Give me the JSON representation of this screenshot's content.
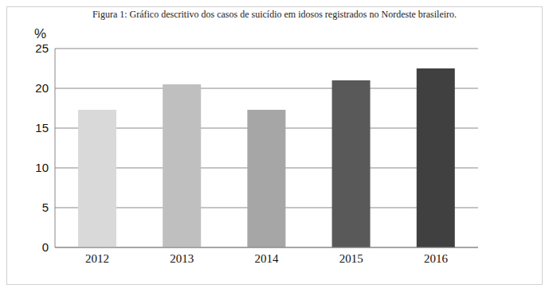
{
  "chart_data": {
    "type": "bar",
    "title": "Figura 1: Gráfico descritivo dos casos de suicídio em idosos registrados no Nordeste brasileiro.",
    "ylabel": "%",
    "categories": [
      "2012",
      "2013",
      "2014",
      "2015",
      "2016"
    ],
    "values": [
      17.3,
      20.5,
      17.3,
      21,
      22.5
    ],
    "colors": [
      "#d9d9d9",
      "#bfbfbf",
      "#a6a6a6",
      "#595959",
      "#404040"
    ],
    "ylim": [
      0,
      25
    ],
    "yticks": [
      0,
      5,
      10,
      15,
      20,
      25
    ],
    "grid": true
  }
}
